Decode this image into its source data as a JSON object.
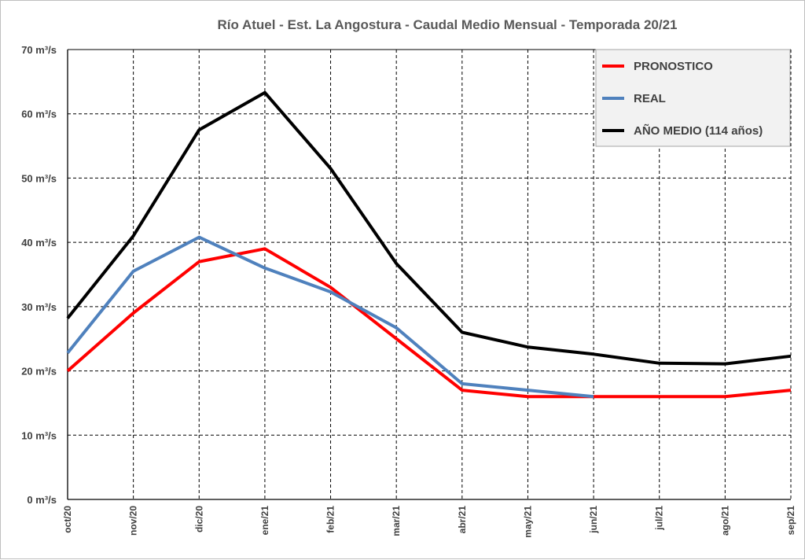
{
  "chart_data": {
    "type": "line",
    "title": "Río Atuel - Est. La Angostura - Caudal Medio Mensual - Temporada 20/21",
    "xlabel": "",
    "ylabel": "",
    "categories": [
      "oct/20",
      "nov/20",
      "dic/20",
      "ene/21",
      "feb/21",
      "mar/21",
      "abr/21",
      "may/21",
      "jun/21",
      "jul/21",
      "ago/21",
      "sep/21"
    ],
    "ylim": [
      0,
      70
    ],
    "yticks": [
      {
        "value": 0,
        "label": "0 m³/s"
      },
      {
        "value": 10,
        "label": "10 m³/s"
      },
      {
        "value": 20,
        "label": "20 m³/s"
      },
      {
        "value": 30,
        "label": "30 m³/s"
      },
      {
        "value": 40,
        "label": "40 m³/s"
      },
      {
        "value": 50,
        "label": "50 m³/s"
      },
      {
        "value": 60,
        "label": "60 m³/s"
      },
      {
        "value": 70,
        "label": "70 m³/s"
      }
    ],
    "grid": true,
    "legend_position": "top-right",
    "series": [
      {
        "name": "PRONOSTICO",
        "color": "#ff0000",
        "values": [
          20,
          29,
          37,
          39,
          33,
          25,
          17,
          16,
          16,
          16,
          16,
          17
        ]
      },
      {
        "name": "REAL",
        "color": "#4f81bd",
        "values": [
          22.8,
          35.5,
          40.8,
          36,
          32.3,
          26.7,
          18,
          17,
          16,
          null,
          null,
          null
        ]
      },
      {
        "name": "AÑO MEDIO (114 años)",
        "color": "#000000",
        "values": [
          28.2,
          41,
          57.5,
          63.3,
          51.5,
          36.7,
          26,
          23.7,
          22.6,
          21.2,
          21.1,
          22.3
        ]
      }
    ]
  }
}
